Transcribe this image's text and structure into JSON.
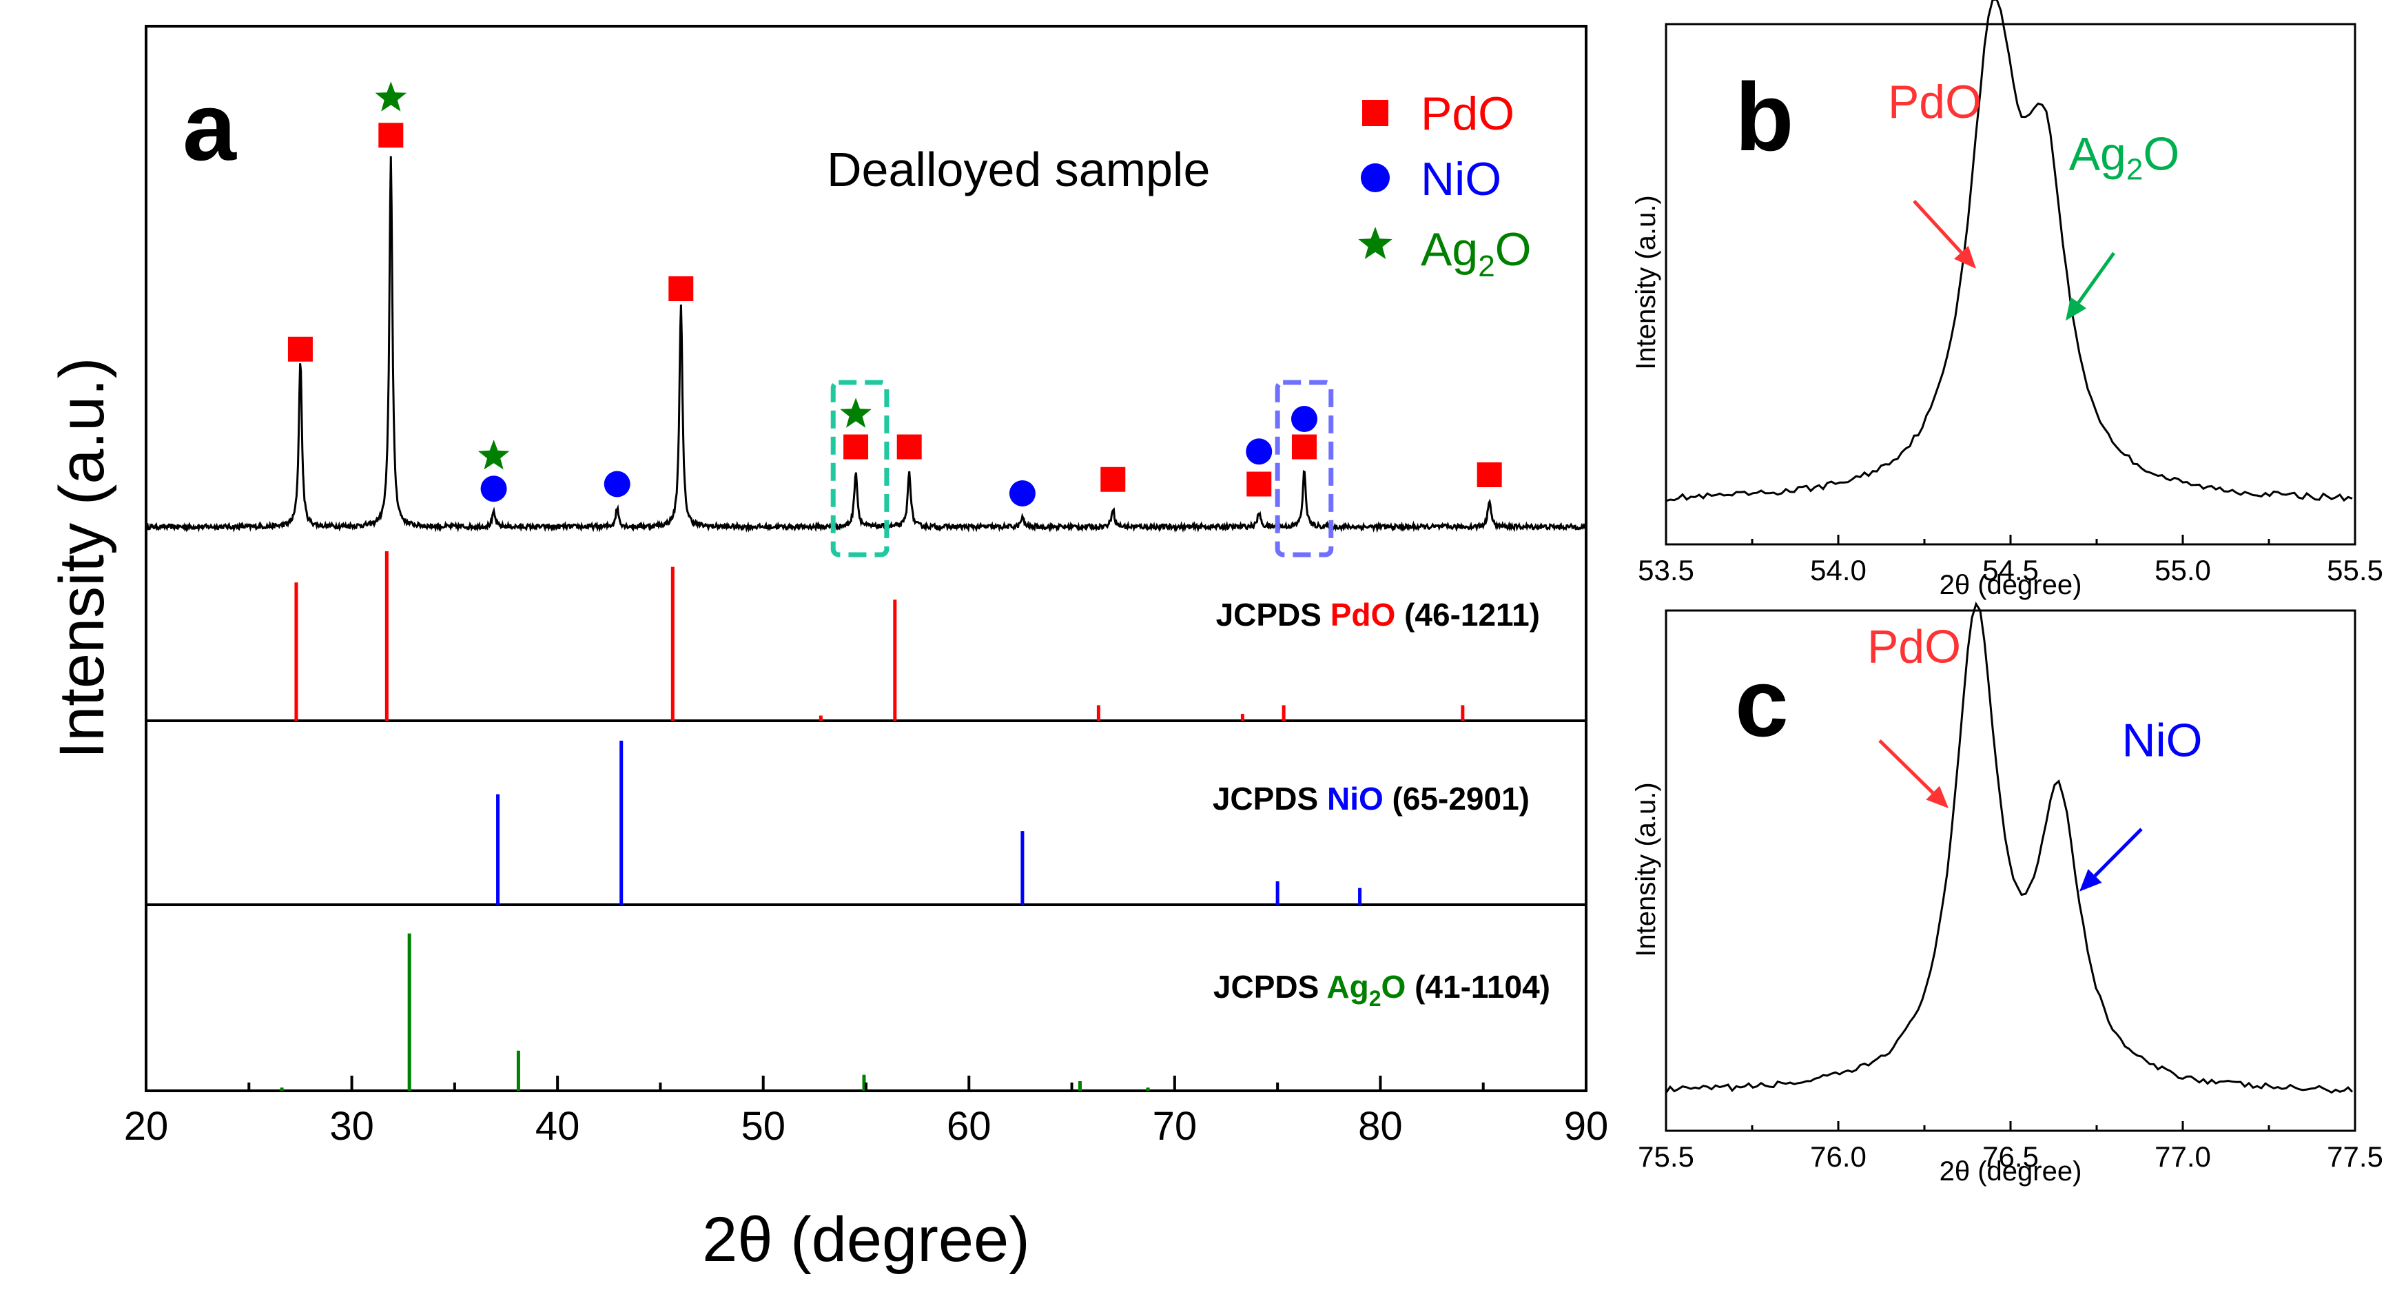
{
  "colors": {
    "PdO": "#ff0000",
    "NiO": "#0000ff",
    "Ag2O": "#008000",
    "trace": "#000000",
    "box_teal": "#20c8a0",
    "box_blue": "#7070ff",
    "annot_Ag2O": "#00b050"
  },
  "chart_data": [
    {
      "panel": "a",
      "type": "line",
      "xlabel": "2θ (degree)",
      "ylabel": "Intensity (a.u.)",
      "xlim": [
        20,
        90
      ],
      "xticks": [
        20,
        30,
        40,
        50,
        60,
        70,
        80,
        90
      ],
      "sample_label": "Dealloyed sample",
      "legend": {
        "placement": "top-right",
        "entries": [
          {
            "marker": "square",
            "label": "PdO",
            "color": "#ff0000"
          },
          {
            "marker": "circle",
            "label": "NiO",
            "color": "#0000ff"
          },
          {
            "marker": "star",
            "label_main": "Ag",
            "label_sub": "2",
            "label_end": "O",
            "color": "#008000"
          }
        ]
      },
      "peaks": [
        {
          "x": 27.5,
          "h": 0.36
        },
        {
          "x": 31.9,
          "h": 0.8
        },
        {
          "x": 36.9,
          "h": 0.03
        },
        {
          "x": 42.9,
          "h": 0.04
        },
        {
          "x": 46.0,
          "h": 0.48
        },
        {
          "x": 54.5,
          "h": 0.12
        },
        {
          "x": 57.1,
          "h": 0.12
        },
        {
          "x": 62.6,
          "h": 0.02
        },
        {
          "x": 67.0,
          "h": 0.04
        },
        {
          "x": 74.1,
          "h": 0.03
        },
        {
          "x": 76.3,
          "h": 0.12
        },
        {
          "x": 85.3,
          "h": 0.06
        }
      ],
      "peak_markers": [
        {
          "x": 27.5,
          "phase": "PdO",
          "level": 0.39
        },
        {
          "x": 31.9,
          "phase": "PdO",
          "level": 0.85
        },
        {
          "x": 31.9,
          "phase": "Ag2O",
          "level": 0.93
        },
        {
          "x": 36.9,
          "phase": "NiO",
          "level": 0.09
        },
        {
          "x": 36.9,
          "phase": "Ag2O",
          "level": 0.16
        },
        {
          "x": 42.9,
          "phase": "NiO",
          "level": 0.1
        },
        {
          "x": 46.0,
          "phase": "PdO",
          "level": 0.52
        },
        {
          "x": 54.5,
          "phase": "PdO",
          "level": 0.18
        },
        {
          "x": 54.5,
          "phase": "Ag2O",
          "level": 0.25
        },
        {
          "x": 57.1,
          "phase": "PdO",
          "level": 0.18
        },
        {
          "x": 62.6,
          "phase": "NiO",
          "level": 0.08
        },
        {
          "x": 67.0,
          "phase": "PdO",
          "level": 0.11
        },
        {
          "x": 74.1,
          "phase": "PdO",
          "level": 0.1
        },
        {
          "x": 74.1,
          "phase": "NiO",
          "level": 0.17
        },
        {
          "x": 76.3,
          "phase": "PdO",
          "level": 0.18
        },
        {
          "x": 76.3,
          "phase": "NiO",
          "level": 0.24
        },
        {
          "x": 85.3,
          "phase": "PdO",
          "level": 0.12
        }
      ],
      "highlight_boxes": [
        {
          "x_from": 53.4,
          "x_to": 56.0,
          "color": "#20c8a0"
        },
        {
          "x_from": 75.0,
          "x_to": 77.6,
          "color": "#7070ff"
        }
      ],
      "references": [
        {
          "label_prefix": "JCPDS",
          "phase_main": "PdO",
          "phase_sub": "",
          "phase_end": "",
          "card": "(46-1211)",
          "color": "#ff0000",
          "lines": [
            {
              "x": 27.3,
              "h": 0.8
            },
            {
              "x": 31.7,
              "h": 0.98
            },
            {
              "x": 45.6,
              "h": 0.89
            },
            {
              "x": 52.8,
              "h": 0.03
            },
            {
              "x": 56.4,
              "h": 0.7
            },
            {
              "x": 66.3,
              "h": 0.09
            },
            {
              "x": 73.3,
              "h": 0.04
            },
            {
              "x": 75.3,
              "h": 0.09
            },
            {
              "x": 84.0,
              "h": 0.09
            }
          ]
        },
        {
          "label_prefix": "JCPDS",
          "phase_main": "NiO",
          "phase_sub": "",
          "phase_end": "",
          "card": "(65-2901)",
          "color": "#0000ff",
          "lines": [
            {
              "x": 37.1,
              "h": 0.66
            },
            {
              "x": 43.1,
              "h": 0.98
            },
            {
              "x": 62.6,
              "h": 0.44
            },
            {
              "x": 75.0,
              "h": 0.14
            },
            {
              "x": 79.0,
              "h": 0.1
            }
          ]
        },
        {
          "label_prefix": "JCPDS",
          "phase_main": "Ag",
          "phase_sub": "2",
          "phase_end": "O",
          "card": "(41-1104)",
          "color": "#008000",
          "lines": [
            {
              "x": 26.6,
              "h": 0.02
            },
            {
              "x": 32.8,
              "h": 0.98
            },
            {
              "x": 38.1,
              "h": 0.25
            },
            {
              "x": 54.9,
              "h": 0.1
            },
            {
              "x": 65.4,
              "h": 0.06
            },
            {
              "x": 68.7,
              "h": 0.02
            }
          ]
        }
      ]
    },
    {
      "panel": "b",
      "type": "line",
      "xlabel": "2θ (degree)",
      "ylabel": "Intensity (a.u.)",
      "xlim": [
        53.5,
        55.5
      ],
      "xticks": [
        53.5,
        54.0,
        54.5,
        55.0,
        55.5
      ],
      "baseline": 0.08,
      "peaks": [
        {
          "x": 54.45,
          "h": 0.86,
          "w": 0.085
        },
        {
          "x": 54.6,
          "h": 0.55,
          "w": 0.075
        }
      ],
      "annotations": [
        {
          "label_main": "PdO",
          "label_sub": "",
          "label_end": "",
          "color": "#ff3333",
          "text_x": 54.28,
          "text_level": 0.82,
          "arrow_from": [
            54.22,
            0.66
          ],
          "arrow_to": [
            54.4,
            0.53
          ]
        },
        {
          "label_main": "Ag",
          "label_sub": "2",
          "label_end": "O",
          "color": "#00b050",
          "text_x": 54.83,
          "text_level": 0.72,
          "arrow_from": [
            54.8,
            0.56
          ],
          "arrow_to": [
            54.66,
            0.43
          ]
        }
      ]
    },
    {
      "panel": "c",
      "type": "line",
      "xlabel": "2θ (degree)",
      "ylabel": "Intensity (a.u.)",
      "xlim": [
        75.5,
        77.5
      ],
      "xticks": [
        75.5,
        76.0,
        76.5,
        77.0,
        77.5
      ],
      "baseline": 0.07,
      "peaks": [
        {
          "x": 76.4,
          "h": 0.9,
          "w": 0.075
        },
        {
          "x": 76.64,
          "h": 0.52,
          "w": 0.075
        }
      ],
      "annotations": [
        {
          "label_main": "PdO",
          "label_sub": "",
          "label_end": "",
          "color": "#ff3333",
          "text_x": 76.22,
          "text_level": 0.9,
          "arrow_from": [
            76.12,
            0.75
          ],
          "arrow_to": [
            76.32,
            0.62
          ]
        },
        {
          "label_main": "NiO",
          "label_sub": "",
          "label_end": "",
          "color": "#0000ff",
          "text_x": 76.94,
          "text_level": 0.72,
          "arrow_from": [
            76.88,
            0.58
          ],
          "arrow_to": [
            76.7,
            0.46
          ]
        }
      ]
    }
  ]
}
